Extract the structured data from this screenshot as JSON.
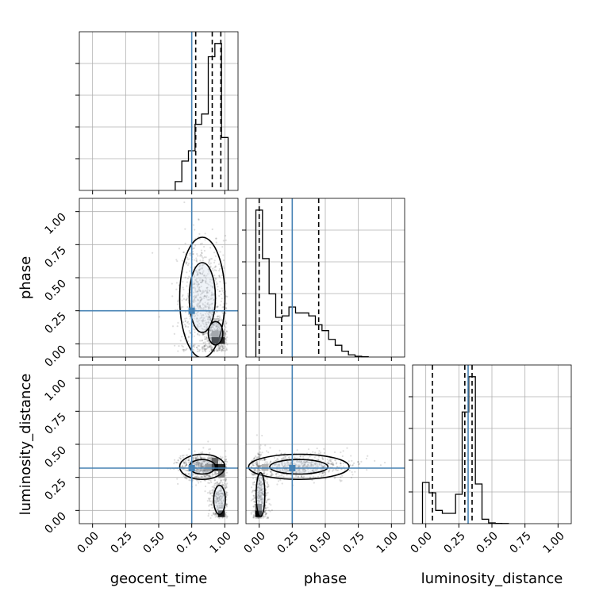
{
  "chart_data": {
    "type": "corner",
    "parameters": [
      "geocent_time",
      "phase",
      "luminosity_distance"
    ],
    "xlabels": [
      "geocent_time",
      "phase",
      "luminosity_distance"
    ],
    "ylabels": [
      "phase",
      "luminosity_distance"
    ],
    "tick_labels": [
      "0.00",
      "0.25",
      "0.50",
      "0.75",
      "1.00"
    ],
    "range": [
      [
        -0.1,
        1.1
      ],
      [
        -0.1,
        1.1
      ],
      [
        -0.1,
        1.1
      ]
    ],
    "truths": [
      0.75,
      0.25,
      0.32
    ],
    "truth_color": "#4682b4",
    "grid": true,
    "histograms": [
      {
        "parameter": "geocent_time",
        "edges": [
          0.625,
          0.675,
          0.725,
          0.775,
          0.825,
          0.875,
          0.925,
          0.975,
          1.025
        ],
        "counts": [
          0.06,
          0.2,
          0.27,
          0.45,
          0.52,
          0.91,
          1.0,
          0.36
        ],
        "quantiles": [
          0.78,
          0.905,
          0.97
        ],
        "ylim": [
          0,
          1.08
        ]
      },
      {
        "parameter": "phase",
        "edges": [
          -0.025,
          0.025,
          0.075,
          0.125,
          0.175,
          0.225,
          0.275,
          0.325,
          0.375,
          0.425,
          0.475,
          0.525,
          0.575,
          0.625,
          0.675,
          0.725,
          0.775,
          0.825
        ],
        "counts": [
          1.0,
          0.67,
          0.43,
          0.27,
          0.28,
          0.34,
          0.3,
          0.3,
          0.28,
          0.22,
          0.18,
          0.12,
          0.08,
          0.04,
          0.015,
          0.005,
          0.002
        ],
        "quantiles": [
          0.0,
          0.17,
          0.45
        ],
        "ylim": [
          0,
          1.08
        ]
      },
      {
        "parameter": "luminosity_distance",
        "edges": [
          -0.025,
          0.025,
          0.075,
          0.125,
          0.175,
          0.225,
          0.275,
          0.325,
          0.375,
          0.425,
          0.475,
          0.525,
          0.575,
          0.625
        ],
        "counts": [
          0.28,
          0.21,
          0.09,
          0.07,
          0.07,
          0.2,
          0.76,
          1.0,
          0.27,
          0.03,
          0.005,
          0.002,
          0.001
        ],
        "quantiles": [
          0.05,
          0.295,
          0.35
        ],
        "ylim": [
          0,
          1.08
        ]
      }
    ],
    "joint": [
      {
        "x": "geocent_time",
        "y": "phase",
        "density_blobs": [
          {
            "cx": 0.83,
            "cy": 0.35,
            "sx": 0.09,
            "sy": 0.24,
            "w": 1.0
          },
          {
            "cx": 0.93,
            "cy": 0.08,
            "sx": 0.05,
            "sy": 0.08,
            "w": 0.6
          }
        ],
        "dark_bins": [
          {
            "x": 0.925,
            "y": 0.025,
            "v": 1.0
          },
          {
            "x": 0.975,
            "y": 0.025,
            "v": 0.85
          },
          {
            "x": 0.925,
            "y": 0.075,
            "v": 0.45
          },
          {
            "x": 0.975,
            "y": 0.075,
            "v": 0.4
          }
        ]
      },
      {
        "x": "geocent_time",
        "y": "luminosity_distance",
        "density_blobs": [
          {
            "cx": 0.83,
            "cy": 0.33,
            "sx": 0.09,
            "sy": 0.05,
            "w": 1.0
          },
          {
            "cx": 0.96,
            "cy": 0.08,
            "sx": 0.04,
            "sy": 0.1,
            "w": 0.5
          }
        ],
        "dark_bins": [
          {
            "x": 0.925,
            "y": 0.325,
            "v": 1.0
          },
          {
            "x": 0.975,
            "y": 0.325,
            "v": 0.85
          },
          {
            "x": 0.875,
            "y": 0.325,
            "v": 0.55
          },
          {
            "x": 0.925,
            "y": 0.375,
            "v": 0.6
          },
          {
            "x": 0.975,
            "y": 0.275,
            "v": 0.5
          },
          {
            "x": 0.975,
            "y": -0.025,
            "v": 0.9
          }
        ]
      },
      {
        "x": "phase",
        "y": "luminosity_distance",
        "density_blobs": [
          {
            "cx": 0.3,
            "cy": 0.33,
            "sx": 0.2,
            "sy": 0.05,
            "w": 1.0
          },
          {
            "cx": 0.01,
            "cy": 0.12,
            "sx": 0.03,
            "sy": 0.15,
            "w": 0.7
          }
        ],
        "dark_bins": [
          {
            "x": -0.005,
            "y": -0.025,
            "v": 1.0
          },
          {
            "x": -0.005,
            "y": 0.025,
            "v": 0.6
          },
          {
            "x": 0.045,
            "y": 0.325,
            "v": 0.3
          }
        ]
      }
    ]
  }
}
